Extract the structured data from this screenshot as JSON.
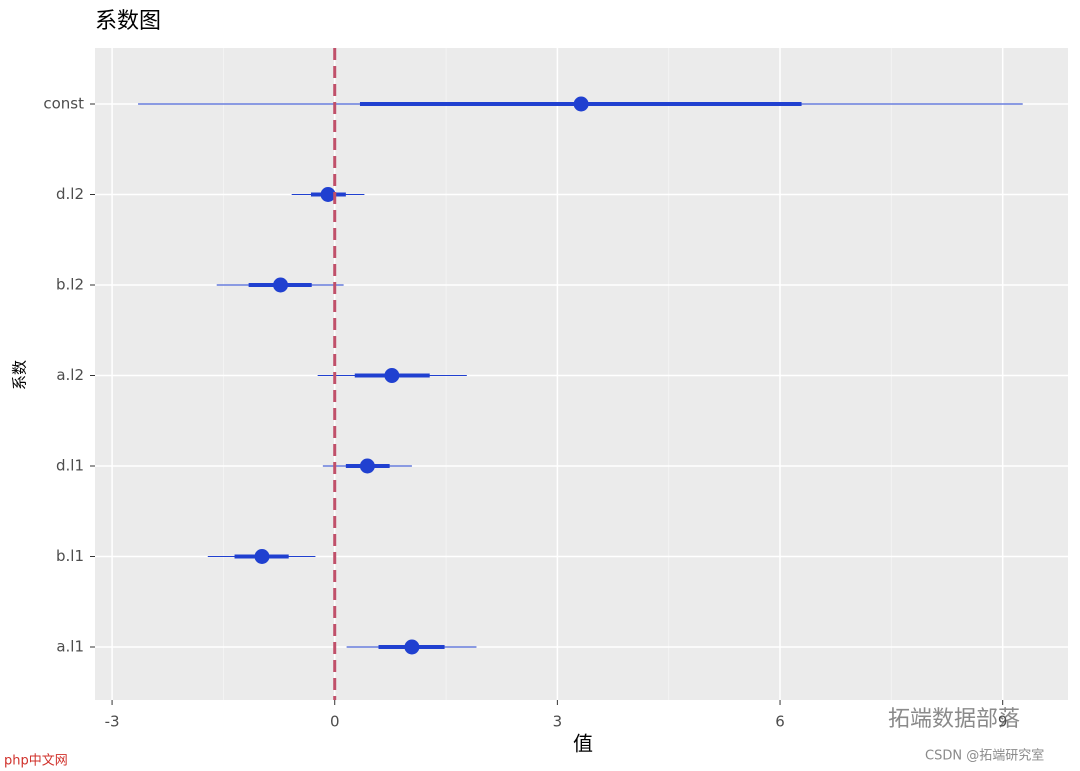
{
  "chart_data": {
    "type": "coefplot",
    "title": "系数图",
    "xlabel": "值",
    "ylabel": "系数",
    "categories": [
      "const",
      "d.l2",
      "b.l2",
      "a.l2",
      "d.l1",
      "b.l1",
      "a.l1"
    ],
    "values": [
      3.32,
      -0.09,
      -0.73,
      0.77,
      0.44,
      -0.98,
      1.04
    ],
    "inner_lo": [
      0.34,
      -0.32,
      -1.16,
      0.27,
      0.15,
      -1.35,
      0.59
    ],
    "inner_hi": [
      6.29,
      0.15,
      -0.31,
      1.28,
      0.74,
      -0.62,
      1.48
    ],
    "outer_lo": [
      -2.65,
      -0.58,
      -1.59,
      -0.23,
      -0.16,
      -1.71,
      0.16
    ],
    "outer_hi": [
      9.27,
      0.4,
      0.12,
      1.78,
      1.04,
      -0.26,
      1.91
    ],
    "color": "#2040d0",
    "ref_line": 0,
    "ref_color": "#c0506a",
    "xlim": [
      -3.23,
      9.88
    ],
    "xticks": [
      -3,
      0,
      3,
      6,
      9
    ],
    "xminor": [
      -4.5,
      -1.5,
      1.5,
      4.5,
      7.5
    ],
    "grid": true
  },
  "watermarks": [
    "拓端数据部落",
    "CSDN @拓端研究室",
    "php中文网"
  ]
}
